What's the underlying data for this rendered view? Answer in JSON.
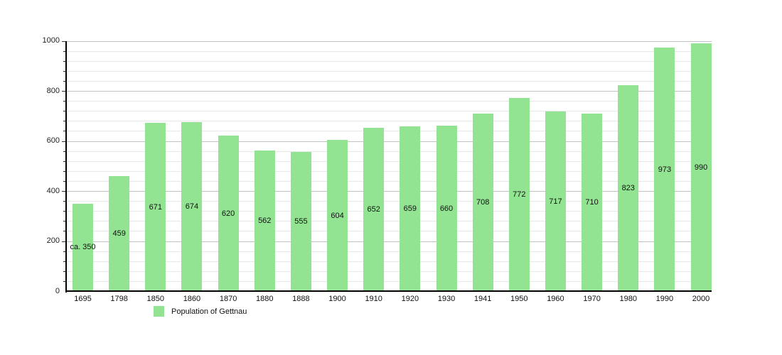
{
  "chart_data": {
    "type": "bar",
    "legend": "Population of Gettnau",
    "categories": [
      "1695",
      "1798",
      "1850",
      "1860",
      "1870",
      "1880",
      "1888",
      "1900",
      "1910",
      "1920",
      "1930",
      "1941",
      "1950",
      "1960",
      "1970",
      "1980",
      "1990",
      "2000"
    ],
    "values": [
      350,
      459,
      671,
      674,
      620,
      562,
      555,
      604,
      652,
      659,
      660,
      708,
      772,
      717,
      710,
      823,
      973,
      990
    ],
    "value_labels": [
      "ca. 350",
      "459",
      "671",
      "674",
      "620",
      "562",
      "555",
      "604",
      "652",
      "659",
      "660",
      "708",
      "772",
      "717",
      "710",
      "823",
      "973",
      "990"
    ],
    "title": "",
    "xlabel": "",
    "ylabel": "",
    "ylim": [
      0,
      1000
    ],
    "y_major_step": 200,
    "y_minor_step": 40,
    "y_tick_labels": [
      "0",
      "200",
      "400",
      "600",
      "800",
      "1000"
    ],
    "grid": "on",
    "legend_position": "bottom-left",
    "colors": {
      "bar": "#92e492",
      "grid_minor": "#e8e8e8",
      "grid_major": "#c3c3c3",
      "axis": "#000000",
      "text": "#111111"
    }
  }
}
